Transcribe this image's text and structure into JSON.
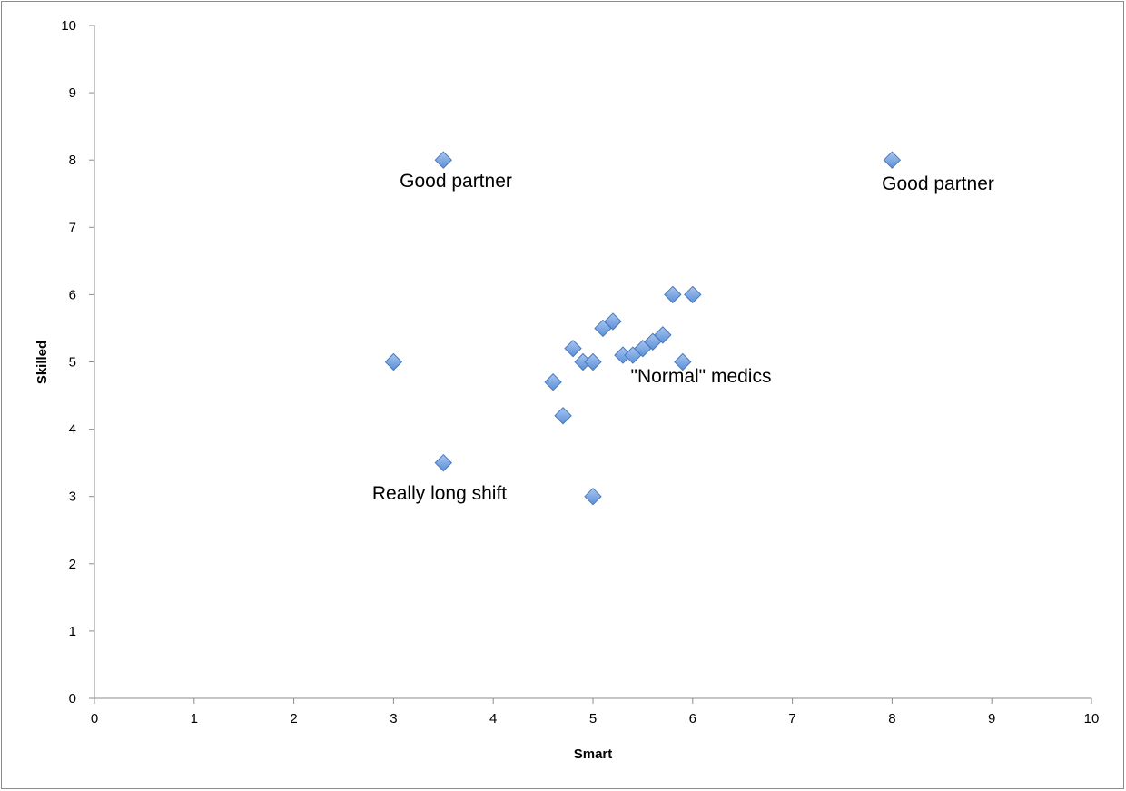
{
  "chart_data": {
    "type": "scatter",
    "title": "",
    "xlabel": "Smart",
    "ylabel": "Skilled",
    "xlim": [
      0,
      10
    ],
    "ylim": [
      0,
      10
    ],
    "xticks": [
      "0",
      "1",
      "2",
      "3",
      "4",
      "5",
      "6",
      "7",
      "8",
      "9",
      "10"
    ],
    "yticks": [
      "0",
      "1",
      "2",
      "3",
      "4",
      "5",
      "6",
      "7",
      "8",
      "9",
      "10"
    ],
    "grid": false,
    "legend": "none",
    "series": [
      {
        "name": "Skilled",
        "color": "#5b8fd8",
        "points": [
          {
            "x": 3.5,
            "y": 8
          },
          {
            "x": 8,
            "y": 8
          },
          {
            "x": 3,
            "y": 5
          },
          {
            "x": 3.5,
            "y": 3.5
          },
          {
            "x": 5,
            "y": 3
          },
          {
            "x": 4.6,
            "y": 4.7
          },
          {
            "x": 4.7,
            "y": 4.2
          },
          {
            "x": 4.8,
            "y": 5.2
          },
          {
            "x": 4.9,
            "y": 5.0
          },
          {
            "x": 5.0,
            "y": 5.0
          },
          {
            "x": 5.1,
            "y": 5.5
          },
          {
            "x": 5.2,
            "y": 5.6
          },
          {
            "x": 5.3,
            "y": 5.1
          },
          {
            "x": 5.4,
            "y": 5.1
          },
          {
            "x": 5.5,
            "y": 5.2
          },
          {
            "x": 5.6,
            "y": 5.3
          },
          {
            "x": 5.7,
            "y": 5.4
          },
          {
            "x": 5.8,
            "y": 6
          },
          {
            "x": 5.9,
            "y": 5.0
          },
          {
            "x": 6,
            "y": 6
          }
        ]
      }
    ],
    "annotations": [
      {
        "text": "Good partner"
      },
      {
        "text": "Good partner"
      },
      {
        "text": "Really long shift"
      },
      {
        "text": "\"Normal\" medics"
      }
    ]
  }
}
